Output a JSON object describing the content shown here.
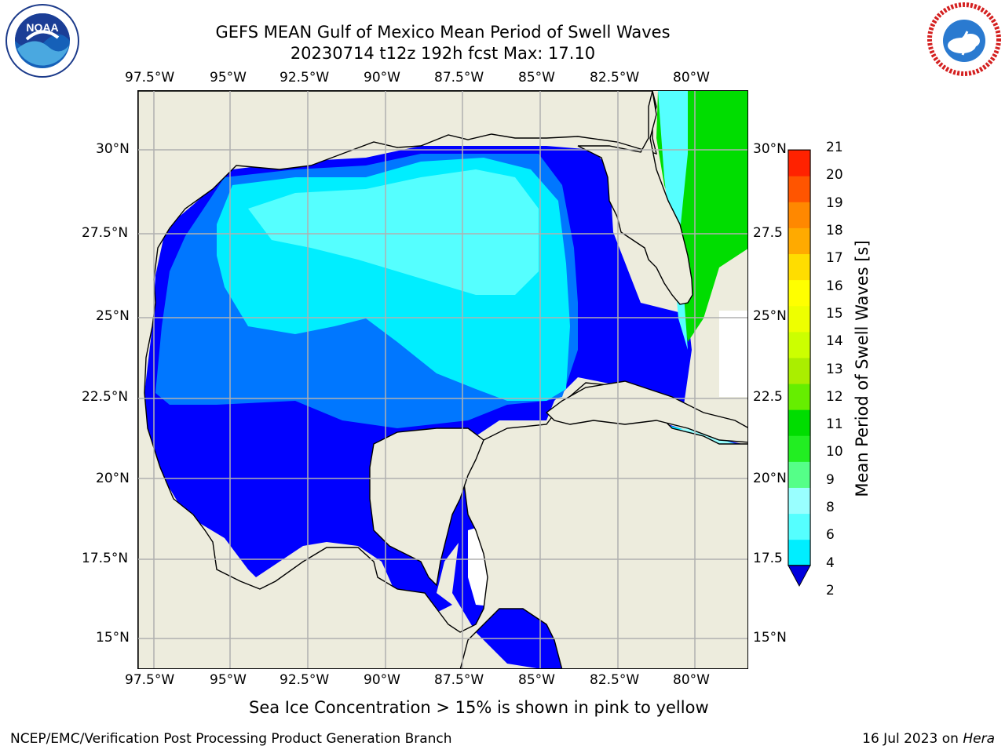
{
  "header": {
    "title_line1": "GEFS MEAN Gulf of Mexico Mean Period of Swell Waves",
    "title_line2": "20230714 t12z 192h fcst   Max: 17.10"
  },
  "logos": {
    "left": {
      "name": "NOAA",
      "ring_text": "NATIONAL OCEANIC AND ATMOSPHERIC ADMINISTRATION · U.S. DEPARTMENT OF COMMERCE"
    },
    "right": {
      "name": "NATIONAL WEATHER SERVICE"
    }
  },
  "map": {
    "lon_labels": [
      "97.5°W",
      "95°W",
      "92.5°W",
      "90°W",
      "87.5°W",
      "85°W",
      "82.5°W",
      "80°W"
    ],
    "lat_labels_left": [
      "30°N",
      "27.5°N",
      "25°N",
      "22.5°N",
      "20°N",
      "17.5°N",
      "15°N"
    ],
    "lat_labels_right": [
      "30°N",
      "27.5",
      "25°N",
      "22.5",
      "20°N",
      "17.5",
      "15°N"
    ],
    "extent": {
      "lon_min": -98.0,
      "lon_max": -79.0,
      "lat_min": 14.0,
      "lat_max": 32.0
    },
    "grid": true,
    "colors": {
      "land": "#edecdd",
      "nodata": "#ffffff",
      "gridline": "#b0b0b0",
      "coast": "#000000"
    }
  },
  "colorbar": {
    "title": "Mean Period of Swell Waves [s]",
    "tick_labels": [
      "2",
      "4",
      "6",
      "8",
      "9",
      "10",
      "11",
      "12",
      "13",
      "14",
      "15",
      "16",
      "17",
      "18",
      "19",
      "20",
      "21"
    ],
    "extend": "min",
    "colors": [
      "#0000ff",
      "#0077ff",
      "#00eeff",
      "#55ffff",
      "#99ffff",
      "#55ff88",
      "#22ee22",
      "#00dd00",
      "#66ee00",
      "#aaee00",
      "#ccff00",
      "#eeff00",
      "#ffff00",
      "#ffdd00",
      "#ffaa00",
      "#ff8800",
      "#ff5500",
      "#ff2200",
      "#ff0000"
    ],
    "under_color": "#0000dd"
  },
  "footer": {
    "note": "Sea Ice Concentration > 15% is shown in pink to yellow",
    "credit": "NCEP/EMC/Verification Post Processing Product Generation Branch",
    "date_prefix": "16 Jul 2023 on ",
    "machine": "Hera"
  }
}
